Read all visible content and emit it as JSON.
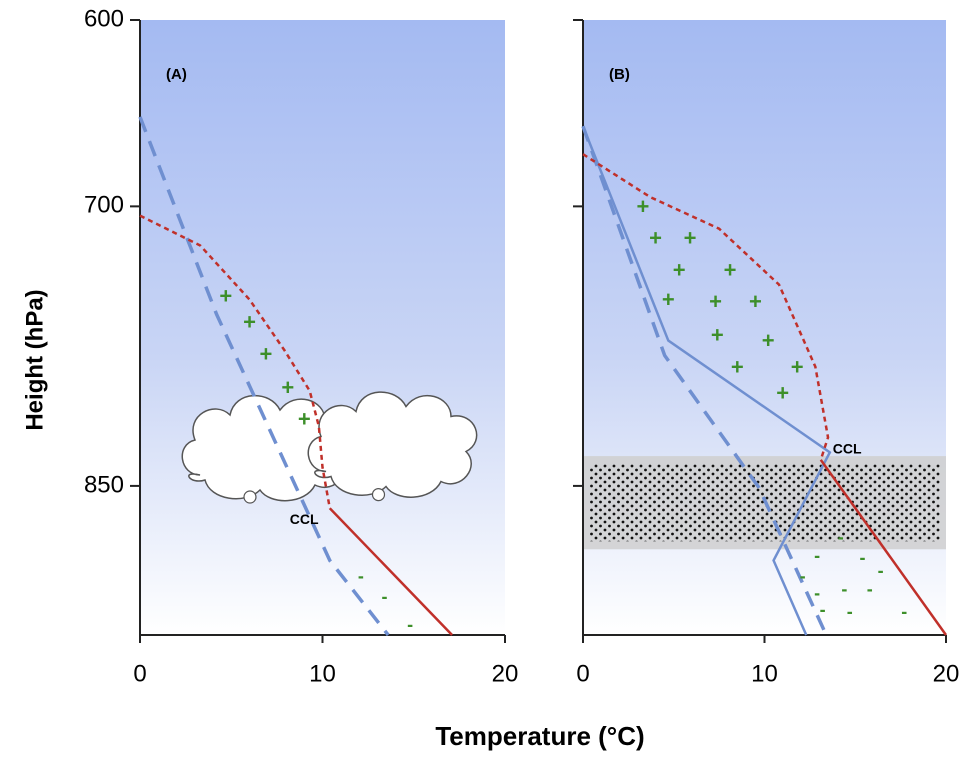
{
  "chart_data": {
    "type": "line",
    "y_label": "Height (hPa)",
    "x_label": "Temperature (°C)",
    "xlim": [
      0,
      20
    ],
    "xticks": [
      0,
      10,
      20
    ],
    "ylim": [
      600,
      930
    ],
    "yticks": [
      600,
      700,
      850
    ],
    "y_inverted": true,
    "panels": [
      {
        "title": "(A)",
        "ccl_label": "CCL",
        "series": [
          {
            "color": "#6f8fd0",
            "style": "dashed",
            "x": [
              0,
              4.2,
              10.4,
              13.6
            ],
            "values": [
              652,
              758,
              890,
              930
            ]
          },
          {
            "color": "#c0302a",
            "style": "dotted",
            "x": [
              0,
              3.3,
              6,
              7.9,
              9.3,
              9.8,
              10,
              10.4
            ],
            "values": [
              705,
              721,
              750,
              777,
              799,
              818,
              840,
              862
            ]
          },
          {
            "color": "#c0302a",
            "style": "solid",
            "x": [
              10.4,
              17.1
            ],
            "values": [
              862,
              930
            ]
          }
        ],
        "markers": [
          {
            "label": "+",
            "color": "#3d8f2a",
            "x": [
              4.7,
              6.0,
              6.9,
              8.1,
              9.0
            ],
            "values": [
              749,
              763,
              780,
              798,
              815
            ]
          },
          {
            "label": "-",
            "color": "#3d8f2a",
            "x": [
              12.1,
              13.4,
              14.8
            ],
            "values": [
              899,
              910,
              925
            ]
          }
        ]
      },
      {
        "title": "(B)",
        "ccl_label": "CCL",
        "fog_layer": [
          834,
          884
        ],
        "series": [
          {
            "color": "#6f8fd0",
            "style": "solid",
            "x": [
              0,
              4.7,
              13.6,
              10.5,
              12.3
            ],
            "values": [
              657,
              772,
              832,
              890,
              930
            ]
          },
          {
            "color": "#6f8fd0",
            "style": "dashed",
            "x": [
              0,
              4.5,
              9.7,
              13.4
            ],
            "values": [
              657,
              780,
              851,
              930
            ]
          },
          {
            "color": "#c0302a",
            "style": "dotted",
            "x": [
              0,
              3.7,
              7.5,
              10.8,
              12.8,
              13.5,
              13.1
            ],
            "values": [
              672,
              695,
              712,
              742,
              786,
              824,
              836
            ]
          },
          {
            "color": "#c0302a",
            "style": "solid",
            "x": [
              13.1,
              20
            ],
            "values": [
              836,
              930
            ]
          }
        ],
        "markers": [
          {
            "label": "+",
            "color": "#3d8f2a",
            "x": [
              3.3,
              4.0,
              5.9,
              5.3,
              8.1,
              4.7,
              7.3,
              9.5,
              7.4,
              10.2,
              8.5,
              11.8,
              11.0
            ],
            "values": [
              701,
              718,
              718,
              735,
              735,
              751,
              752,
              752,
              770,
              773,
              787,
              787,
              801
            ]
          },
          {
            "label": "-",
            "color": "#3d8f2a",
            "x": [
              14.2,
              12.9,
              15.4,
              12.1,
              16.4,
              12.9,
              14.4,
              15.8,
              13.2,
              14.7,
              17.7
            ],
            "values": [
              878,
              888,
              889,
              899,
              896,
              908,
              906,
              906,
              917,
              918,
              918
            ]
          }
        ]
      }
    ]
  }
}
